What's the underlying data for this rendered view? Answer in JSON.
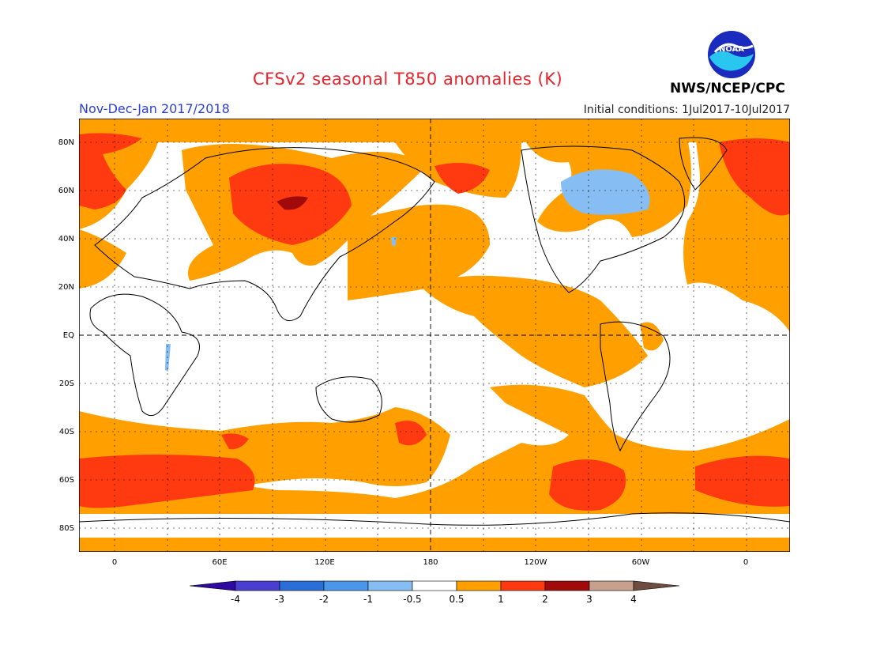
{
  "header": {
    "title": "CFSv2 seasonal T850 anomalies (K)",
    "period": "Nov-Dec-Jan 2017/2018",
    "initial_conditions": "Initial conditions: 1Jul2017-10Jul2017",
    "agency": "NWS/NCEP/CPC",
    "logo_text": "NOAA"
  },
  "map": {
    "latitude_labels": [
      "80N",
      "60N",
      "40N",
      "20N",
      "EQ",
      "20S",
      "40S",
      "60S",
      "80S"
    ],
    "longitude_labels": [
      "0",
      "60E",
      "120E",
      "180",
      "120W",
      "60W",
      "0"
    ]
  },
  "colorbar": {
    "labels": [
      "-4",
      "-3",
      "-2",
      "-1",
      "-0.5",
      "0.5",
      "1",
      "2",
      "3",
      "4"
    ],
    "colors": [
      "#2d0aa0",
      "#4a3ed0",
      "#2a6ed8",
      "#4a96ea",
      "#86bdf2",
      "#ffffff",
      "#ffa000",
      "#ff3a10",
      "#a00a0a",
      "#c8a090",
      "#6e4c40"
    ]
  },
  "colors": {
    "positive_05_1": "#ffa000",
    "positive_1_2": "#ff3a10",
    "positive_2_3": "#a00a0a",
    "negative_1_05": "#86bdf2",
    "title": "#e8222a",
    "period": "#2c3fd6"
  }
}
